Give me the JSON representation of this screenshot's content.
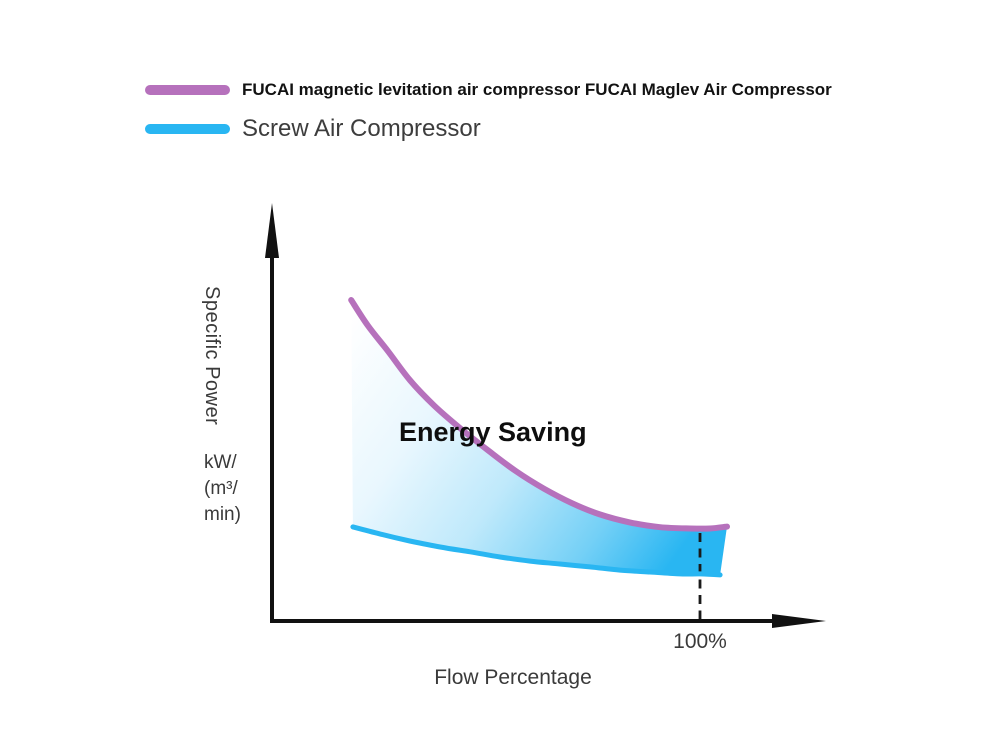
{
  "colors": {
    "maglev": "#b671bc",
    "screw": "#29b6f2",
    "axis": "#111111",
    "marker_dash": "#1a1a1a"
  },
  "legend": {
    "items": [
      {
        "label": "FUCAI magnetic levitation air compressor FUCAI Maglev Air Compressor"
      },
      {
        "label": "Screw Air Compressor"
      }
    ]
  },
  "chart": {
    "y_axis_label": "Specific Power",
    "y_axis_units_lines": [
      "kW/",
      "(m³/",
      "min)"
    ],
    "x_axis_label": "Flow Percentage",
    "annotation": "Energy Saving",
    "x_tick_label": "100%"
  },
  "chart_data": {
    "type": "line",
    "title": "",
    "xlabel": "Flow Percentage",
    "ylabel": "Specific Power kW/(m³/min)",
    "x_unit": "percent of rated flow",
    "y_unit": "relative specific power (unitless, axis unlabeled)",
    "xlim": [
      0,
      129
    ],
    "ylim": [
      0,
      1.3
    ],
    "grid": false,
    "legend_position": "top-left",
    "annotations": [
      {
        "text": "Energy Saving",
        "x": 52,
        "y": 0.62
      }
    ],
    "x_marker": {
      "label": "100%",
      "x": 100,
      "style": "dashed-vertical"
    },
    "fill_between": {
      "series_top": 0,
      "series_bottom": 1,
      "gradient": [
        "#ffffff",
        "#29b6f2"
      ],
      "meaning": "Energy Saving"
    },
    "series": [
      {
        "name": "FUCAI Maglev Air Compressor",
        "color": "#b671bc",
        "points": [
          [
            18.5,
            1.0
          ],
          [
            22.4,
            0.92
          ],
          [
            27.1,
            0.84
          ],
          [
            32.2,
            0.75
          ],
          [
            37.9,
            0.67
          ],
          [
            43.9,
            0.6
          ],
          [
            50.5,
            0.53
          ],
          [
            57.0,
            0.465
          ],
          [
            63.6,
            0.41
          ],
          [
            70.1,
            0.365
          ],
          [
            76.6,
            0.33
          ],
          [
            83.6,
            0.305
          ],
          [
            90.7,
            0.29
          ],
          [
            97.7,
            0.286
          ],
          [
            102.3,
            0.286
          ],
          [
            106.3,
            0.292
          ]
        ]
      },
      {
        "name": "Screw Air Compressor",
        "color": "#29b6f2",
        "points": [
          [
            18.9,
            0.291
          ],
          [
            25.2,
            0.269
          ],
          [
            32.2,
            0.247
          ],
          [
            39.3,
            0.228
          ],
          [
            46.3,
            0.213
          ],
          [
            53.3,
            0.197
          ],
          [
            60.3,
            0.184
          ],
          [
            67.3,
            0.175
          ],
          [
            74.3,
            0.166
          ],
          [
            81.3,
            0.156
          ],
          [
            88.3,
            0.15
          ],
          [
            95.3,
            0.144
          ],
          [
            100.0,
            0.144
          ],
          [
            104.7,
            0.141
          ]
        ]
      }
    ]
  }
}
